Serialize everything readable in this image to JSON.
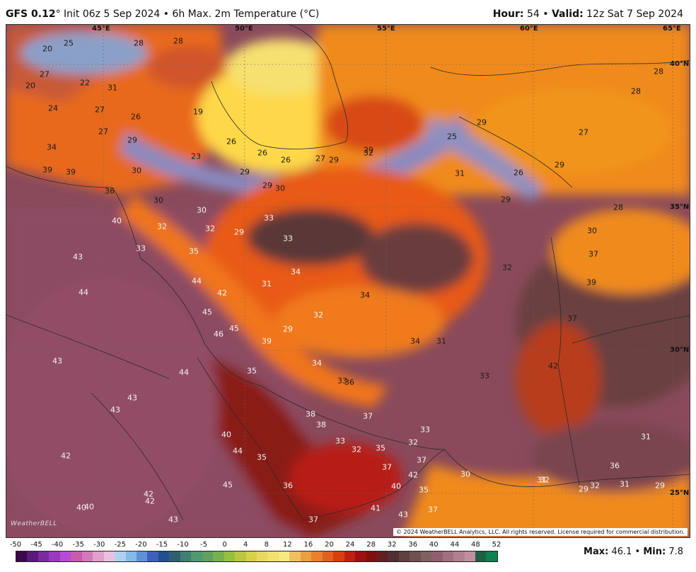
{
  "header": {
    "model": "GFS 0.12",
    "degree": "°",
    "init_text": " Init 06z 5 Sep 2024 • 6h Max. 2m Temperature (°C)",
    "hour_label": "Hour:",
    "hour_value": " 54 • ",
    "valid_label": "Valid:",
    "valid_value": " 12z Sat 7 Sep 2024"
  },
  "map": {
    "lon_labels": [
      "45°E",
      "50°E",
      "55°E",
      "60°E",
      "65°E"
    ],
    "lat_labels": [
      "40°N",
      "35°N",
      "30°N",
      "25°N"
    ],
    "copyright": "© 2024 WeatherBELL Analytics, LLC. All rights reserved. License required for commercial distribution.",
    "logo": "WeatherBELL",
    "values": [
      "20",
      "25",
      "28",
      "28",
      "27",
      "22",
      "20",
      "24",
      "27",
      "31",
      "26",
      "19",
      "27",
      "29",
      "34",
      "23",
      "26",
      "26",
      "26",
      "27",
      "29",
      "32",
      "29",
      "30",
      "29",
      "39",
      "39",
      "30",
      "36",
      "40",
      "30",
      "32",
      "32",
      "30",
      "33",
      "29",
      "33",
      "33",
      "35",
      "43",
      "44",
      "44",
      "42",
      "45",
      "45",
      "46",
      "31",
      "34",
      "34",
      "32",
      "39",
      "29",
      "44",
      "35",
      "43",
      "43",
      "43",
      "42",
      "40",
      "44",
      "35",
      "42",
      "40",
      "45",
      "42",
      "40",
      "43",
      "37",
      "34",
      "34",
      "31",
      "33",
      "33",
      "36",
      "37",
      "38",
      "33",
      "38",
      "32",
      "35",
      "33",
      "32",
      "37",
      "30",
      "42",
      "35",
      "41",
      "43",
      "37",
      "37",
      "36",
      "40",
      "29",
      "32",
      "31",
      "29",
      "32",
      "31",
      "42",
      "36",
      "31",
      "29",
      "25",
      "29",
      "26",
      "29",
      "27",
      "28",
      "28",
      "29",
      "28",
      "30",
      "37",
      "39",
      "37",
      "31",
      "32"
    ]
  },
  "scale": {
    "ticks": [
      "-50",
      "-45",
      "-40",
      "-35",
      "-30",
      "-25",
      "-20",
      "-15",
      "-10",
      "-5",
      "0",
      "4",
      "8",
      "12",
      "16",
      "20",
      "24",
      "28",
      "32",
      "36",
      "40",
      "44",
      "48",
      "52"
    ],
    "colors": [
      "#3a0a4a",
      "#5a1a7a",
      "#7a2aa0",
      "#9a3ac0",
      "#b84ad8",
      "#c85ab0",
      "#d07ab8",
      "#e0a0cc",
      "#e8c0e0",
      "#b0d0f0",
      "#88b8e8",
      "#6090d8",
      "#4060b8",
      "#205090",
      "#306070",
      "#408070",
      "#509870",
      "#60a060",
      "#78b050",
      "#98c040",
      "#b8c840",
      "#d8d048",
      "#e8d860",
      "#f0e070",
      "#f8e880",
      "#f0c060",
      "#e8a040",
      "#e88030",
      "#e06020",
      "#d84010",
      "#c02010",
      "#a01010",
      "#801010",
      "#602020",
      "#503030",
      "#604040",
      "#705050",
      "#806060",
      "#906070",
      "#a07080",
      "#b08090",
      "#c090a0",
      "#206040",
      "#108050"
    ],
    "max_label": "Max:",
    "max_value": " 46.1 • ",
    "min_label": "Min:",
    "min_value": " 7.8"
  }
}
